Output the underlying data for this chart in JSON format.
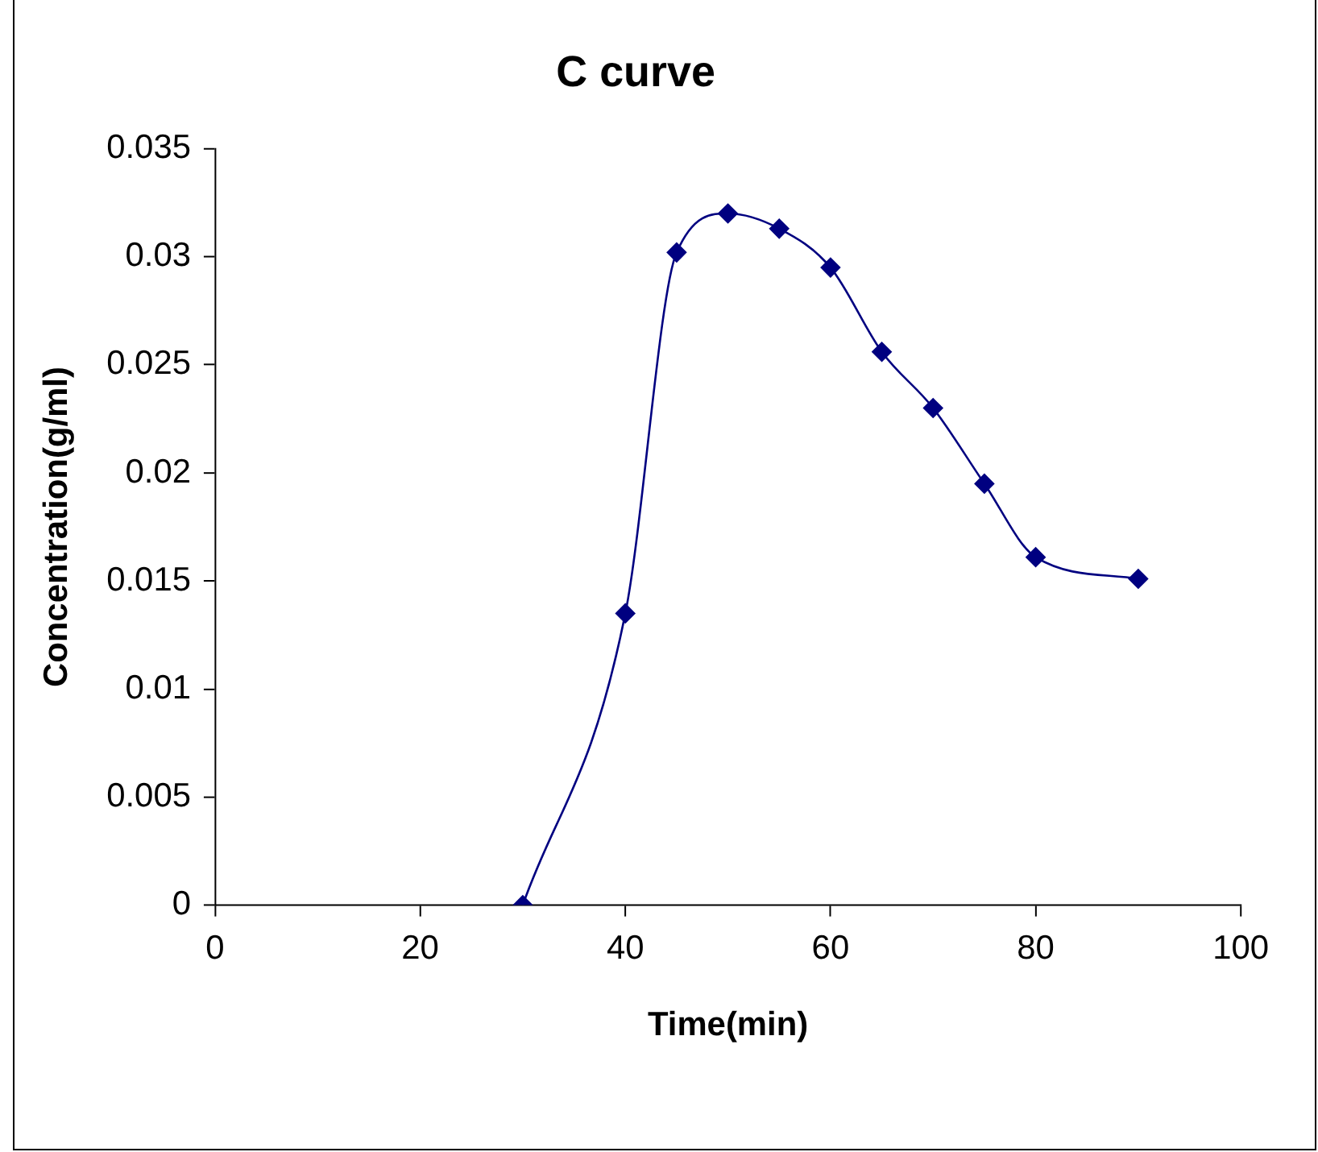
{
  "chart_data": {
    "type": "line",
    "title": "C curve",
    "xlabel": "Time(min)",
    "ylabel": "Concentration(g/ml)",
    "x": [
      30,
      40,
      45,
      50,
      55,
      60,
      65,
      70,
      75,
      80,
      90
    ],
    "series": [
      {
        "color": "#000080",
        "values": [
          0,
          0.0135,
          0.0302,
          0.032,
          0.0313,
          0.0295,
          0.0256,
          0.023,
          0.0195,
          0.0161,
          0.0151
        ]
      }
    ],
    "xlim": [
      0,
      100
    ],
    "xticks": [
      0,
      20,
      40,
      60,
      80,
      100
    ],
    "ylim": [
      0,
      0.035
    ],
    "yticks": [
      0,
      0.005,
      0.01,
      0.015,
      0.02,
      0.025,
      0.03,
      0.035
    ],
    "grid": false,
    "legend": false,
    "marker": "diamond"
  }
}
